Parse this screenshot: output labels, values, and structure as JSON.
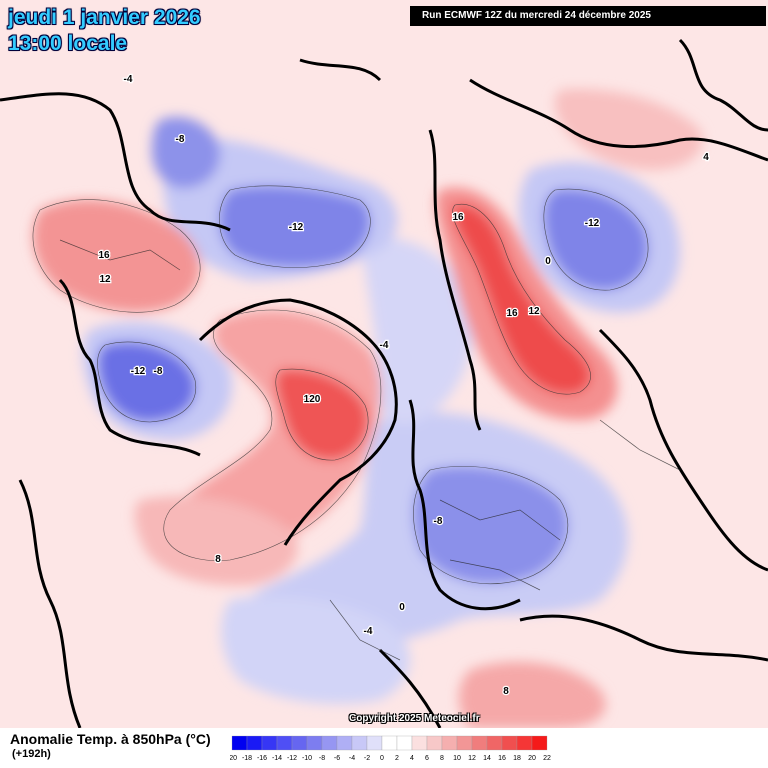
{
  "header": {
    "date": "jeudi 1 janvier 2026",
    "time": "13:00 locale",
    "run": "Run ECMWF 12Z du mercredi 24 décembre 2025"
  },
  "copyright": "Copyright 2025 Meteociel.fr",
  "legend": {
    "title": "Anomalie Temp. à 850hPa (°C)",
    "subtitle": "(+192h)",
    "ticks": [
      "-20",
      "-18",
      "-16",
      "-14",
      "-12",
      "-10",
      "-8",
      "-6",
      "-4",
      "-2",
      "0",
      "2",
      "4",
      "6",
      "8",
      "10",
      "12",
      "14",
      "16",
      "18",
      "20",
      "22"
    ],
    "colors": [
      "#0000f0",
      "#1a1af5",
      "#3636f5",
      "#4f4ff5",
      "#6666f0",
      "#7d7df0",
      "#9696f2",
      "#afaff5",
      "#c8c8f7",
      "#e0e0fa",
      "#ffffff",
      "#ffffff",
      "#fbe0e0",
      "#f7c8c8",
      "#f5afaf",
      "#f29696",
      "#f07d7d",
      "#f06666",
      "#f04f4f",
      "#f53636",
      "#f51a1a"
    ]
  },
  "contour_labels": [
    {
      "text": "-4",
      "zone": "north-pacific"
    },
    {
      "text": "-8",
      "zone": "alaska"
    },
    {
      "text": "-12",
      "zone": "canadian-arctic"
    },
    {
      "text": "-12",
      "zone": "east-siberia"
    },
    {
      "text": "16",
      "zone": "west-siberia"
    },
    {
      "text": "16",
      "zone": "urals"
    },
    {
      "text": "12",
      "zone": "urals"
    },
    {
      "text": "16",
      "zone": "north-pacific"
    },
    {
      "text": "12",
      "zone": "north-pacific"
    },
    {
      "text": "-12",
      "zone": "hudson-bay"
    },
    {
      "text": "-8",
      "zone": "hudson-bay"
    },
    {
      "text": "120",
      "zone": "greenland"
    },
    {
      "text": "8",
      "zone": "north-atlantic"
    },
    {
      "text": "-8",
      "zone": "europe"
    },
    {
      "text": "-4",
      "zone": "mediterranean"
    },
    {
      "text": "0",
      "zone": "mediterranean"
    },
    {
      "text": "8",
      "zone": "north-africa"
    },
    {
      "text": "4",
      "zone": "east-asia"
    },
    {
      "text": "0",
      "zone": "central-asia"
    },
    {
      "text": "-4",
      "zone": "arctic-ocean"
    }
  ]
}
